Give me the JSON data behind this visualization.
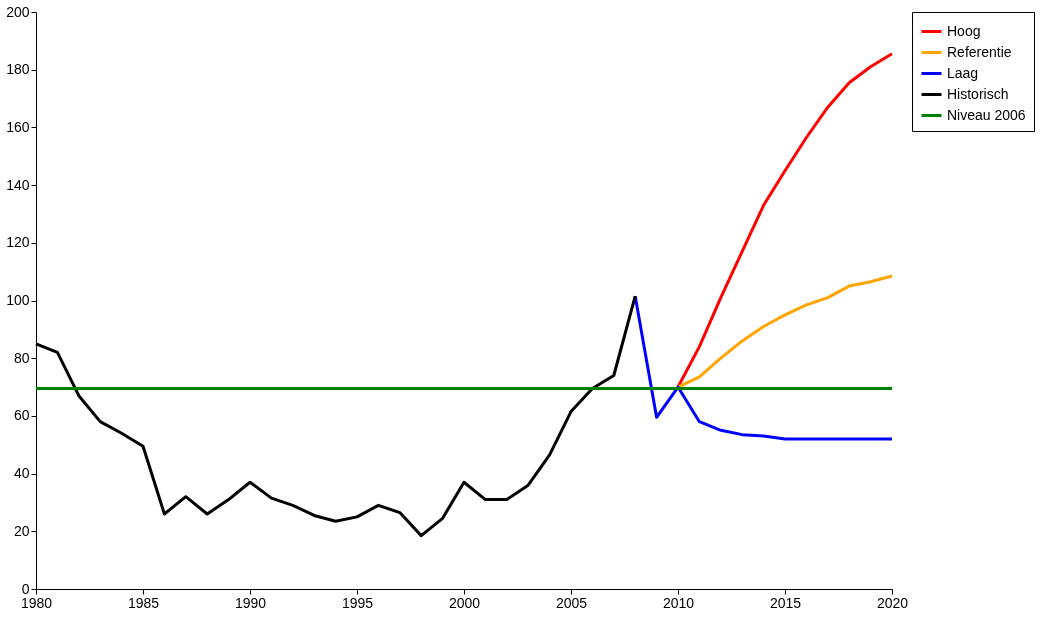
{
  "chart_data": {
    "type": "line",
    "legend": "right",
    "grid": false,
    "marker": "none",
    "line_style": "solid",
    "xlim": [
      1980,
      2020
    ],
    "xticks": [
      1980,
      1985,
      1990,
      1995,
      2000,
      2005,
      2010,
      2015,
      2020
    ],
    "ylim": [
      0,
      200
    ],
    "yticks": [
      0,
      20,
      40,
      60,
      80,
      100,
      120,
      140,
      160,
      180,
      200
    ],
    "series": [
      {
        "name": "Hoog",
        "color": "#ff0000",
        "x": [
          2010,
          2011,
          2012,
          2013,
          2014,
          2015,
          2016,
          2017,
          2018,
          2019,
          2020
        ],
        "values": [
          70,
          84,
          101,
          117,
          133,
          145,
          156.5,
          167,
          175.5,
          181,
          185.5
        ]
      },
      {
        "name": "Referentie",
        "color": "#ffa500",
        "x": [
          2010,
          2011,
          2012,
          2013,
          2014,
          2015,
          2016,
          2017,
          2018,
          2019,
          2020
        ],
        "values": [
          70,
          73.5,
          80,
          86,
          91,
          95,
          98.5,
          101,
          105,
          106.5,
          108.5
        ]
      },
      {
        "name": "Laag",
        "color": "#0000ff",
        "x": [
          2008,
          2009,
          2010,
          2011,
          2012,
          2013,
          2014,
          2015,
          2016,
          2017,
          2018,
          2019,
          2020
        ],
        "values": [
          101.5,
          59.5,
          70,
          58,
          55,
          53.5,
          53,
          52,
          52,
          52,
          52,
          52,
          52
        ]
      },
      {
        "name": "Historisch",
        "color": "#000000",
        "x": [
          1980,
          1981,
          1982,
          1983,
          1984,
          1985,
          1986,
          1987,
          1988,
          1989,
          1990,
          1991,
          1992,
          1993,
          1994,
          1995,
          1996,
          1997,
          1998,
          1999,
          2000,
          2001,
          2002,
          2003,
          2004,
          2005,
          2006,
          2007,
          2008
        ],
        "values": [
          85,
          82,
          67,
          58,
          54,
          49.5,
          26,
          32,
          26,
          31,
          37,
          31.5,
          29,
          25.5,
          23.5,
          25,
          29,
          26.5,
          18.5,
          24.5,
          37,
          31,
          31,
          36,
          46.5,
          61.5,
          69.5,
          74,
          101.5
        ]
      },
      {
        "name": "Niveau 2006",
        "color": "#008000",
        "x": [
          1980,
          2020
        ],
        "values": [
          69.5,
          69.5
        ]
      }
    ]
  }
}
